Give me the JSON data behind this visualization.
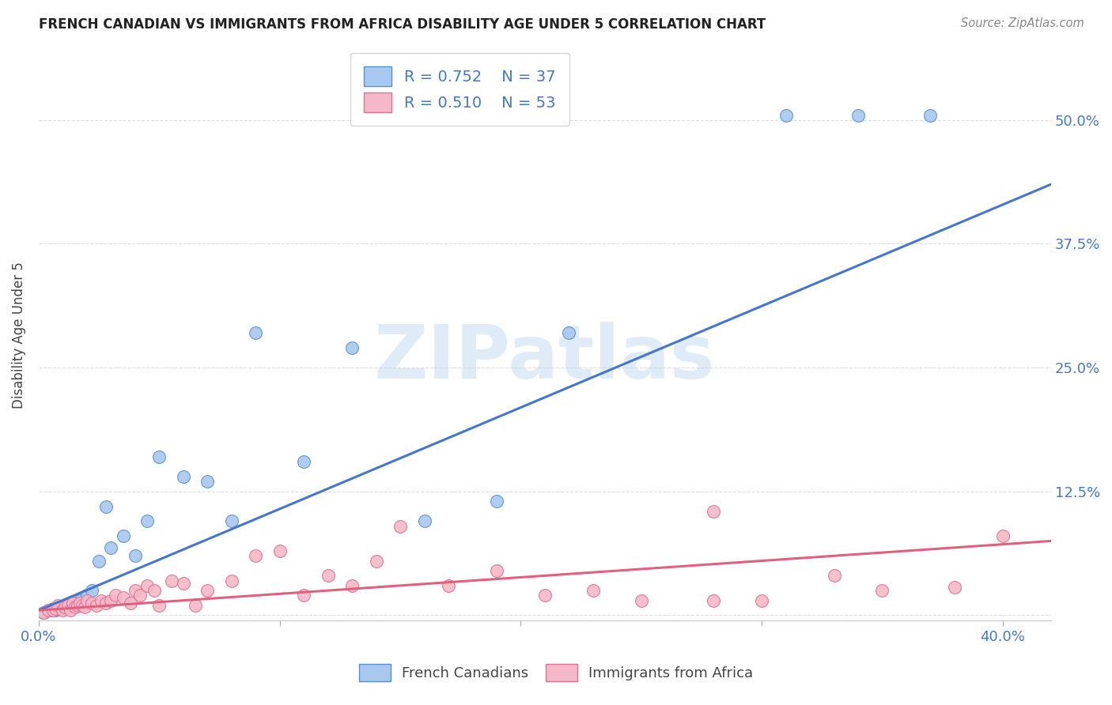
{
  "title": "FRENCH CANADIAN VS IMMIGRANTS FROM AFRICA DISABILITY AGE UNDER 5 CORRELATION CHART",
  "source": "Source: ZipAtlas.com",
  "ylabel": "Disability Age Under 5",
  "xlim": [
    0.0,
    0.42
  ],
  "ylim": [
    -0.005,
    0.57
  ],
  "yticks": [
    0.0,
    0.125,
    0.25,
    0.375,
    0.5
  ],
  "ytick_labels_right": [
    "",
    "12.5%",
    "25.0%",
    "37.5%",
    "50.0%"
  ],
  "xtick_positions": [
    0.0,
    0.1,
    0.2,
    0.3,
    0.4
  ],
  "xtick_labels": [
    "0.0%",
    "",
    "",
    "",
    "40.0%"
  ],
  "blue_R": "0.752",
  "blue_N": "37",
  "pink_R": "0.510",
  "pink_N": "53",
  "blue_color": "#A8C8F0",
  "pink_color": "#F5B8C8",
  "blue_edge_color": "#5590D0",
  "pink_edge_color": "#E07090",
  "blue_line_color": "#4477CC",
  "pink_line_color": "#E06080",
  "tick_label_color": "#4477CC",
  "watermark_text": "ZIPatlas",
  "blue_scatter_x": [
    0.002,
    0.004,
    0.005,
    0.006,
    0.007,
    0.008,
    0.009,
    0.01,
    0.011,
    0.012,
    0.013,
    0.014,
    0.015,
    0.016,
    0.017,
    0.018,
    0.02,
    0.022,
    0.025,
    0.028,
    0.03,
    0.035,
    0.04,
    0.045,
    0.05,
    0.06,
    0.07,
    0.08,
    0.09,
    0.11,
    0.13,
    0.16,
    0.19,
    0.22,
    0.31,
    0.34,
    0.37
  ],
  "blue_scatter_y": [
    0.003,
    0.005,
    0.005,
    0.007,
    0.005,
    0.008,
    0.006,
    0.008,
    0.01,
    0.008,
    0.012,
    0.01,
    0.012,
    0.01,
    0.015,
    0.012,
    0.02,
    0.025,
    0.055,
    0.11,
    0.068,
    0.08,
    0.06,
    0.095,
    0.16,
    0.14,
    0.135,
    0.095,
    0.285,
    0.155,
    0.27,
    0.095,
    0.115,
    0.285,
    0.505,
    0.505,
    0.505
  ],
  "pink_scatter_x": [
    0.002,
    0.004,
    0.006,
    0.007,
    0.008,
    0.01,
    0.011,
    0.012,
    0.013,
    0.014,
    0.015,
    0.016,
    0.017,
    0.018,
    0.019,
    0.02,
    0.022,
    0.024,
    0.026,
    0.028,
    0.03,
    0.032,
    0.035,
    0.038,
    0.04,
    0.042,
    0.045,
    0.048,
    0.05,
    0.055,
    0.06,
    0.065,
    0.07,
    0.08,
    0.09,
    0.1,
    0.11,
    0.12,
    0.13,
    0.14,
    0.15,
    0.17,
    0.19,
    0.21,
    0.23,
    0.25,
    0.28,
    0.3,
    0.33,
    0.35,
    0.28,
    0.38,
    0.4
  ],
  "pink_scatter_y": [
    0.003,
    0.005,
    0.005,
    0.007,
    0.01,
    0.005,
    0.008,
    0.01,
    0.005,
    0.012,
    0.008,
    0.01,
    0.012,
    0.01,
    0.008,
    0.015,
    0.012,
    0.01,
    0.015,
    0.012,
    0.015,
    0.02,
    0.018,
    0.012,
    0.025,
    0.02,
    0.03,
    0.025,
    0.01,
    0.035,
    0.032,
    0.01,
    0.025,
    0.035,
    0.06,
    0.065,
    0.02,
    0.04,
    0.03,
    0.055,
    0.09,
    0.03,
    0.045,
    0.02,
    0.025,
    0.015,
    0.105,
    0.015,
    0.04,
    0.025,
    0.015,
    0.028,
    0.08
  ],
  "blue_trendline_x": [
    0.0,
    0.42
  ],
  "blue_trendline_y": [
    0.005,
    0.435
  ],
  "pink_trendline_x": [
    0.0,
    0.42
  ],
  "pink_trendline_y": [
    0.005,
    0.075
  ],
  "grid_color": "#DDDDDD",
  "bottom_spine_color": "#CCCCCC"
}
